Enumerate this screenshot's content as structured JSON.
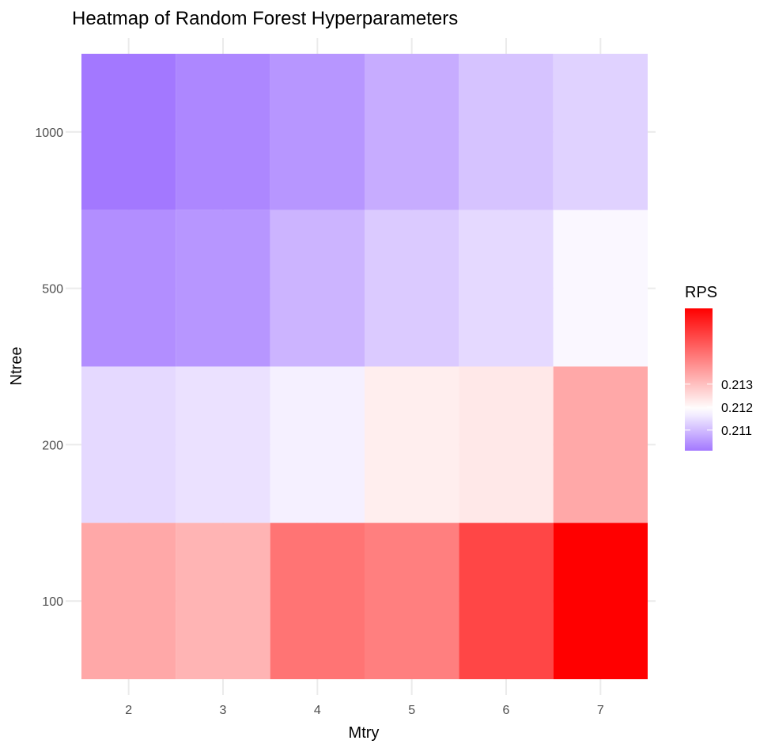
{
  "chart_data": {
    "type": "heatmap",
    "title": "Heatmap of Random Forest Hyperparameters",
    "xlabel": "Mtry",
    "ylabel": "Ntree",
    "x_categories": [
      "2",
      "3",
      "4",
      "5",
      "6",
      "7"
    ],
    "y_categories": [
      "100",
      "200",
      "500",
      "1000"
    ],
    "value_name": "RPS",
    "grid": true,
    "legend_position": "right",
    "values": [
      {
        "ntree": "1000",
        "row": [
          0.2101,
          0.2103,
          0.2105,
          0.2108,
          0.2111,
          0.2113
        ]
      },
      {
        "ntree": "500",
        "row": [
          0.2104,
          0.2105,
          0.2109,
          0.2112,
          0.2114,
          0.2118
        ]
      },
      {
        "ntree": "200",
        "row": [
          0.2114,
          0.2115,
          0.2117,
          0.2122,
          0.2123,
          0.2134
        ]
      },
      {
        "ntree": "100",
        "row": [
          0.2134,
          0.2132,
          0.2143,
          0.2141,
          0.2151,
          0.2163
        ]
      }
    ],
    "color_scale": {
      "low": "#a378ff",
      "mid": "#ffffff",
      "high": "#ff0000",
      "min": 0.2101,
      "midpoint": 0.2119,
      "max": 0.2163,
      "ticks": [
        "0.211",
        "0.212",
        "0.213"
      ],
      "tick_values": [
        0.211,
        0.212,
        0.213
      ]
    }
  }
}
